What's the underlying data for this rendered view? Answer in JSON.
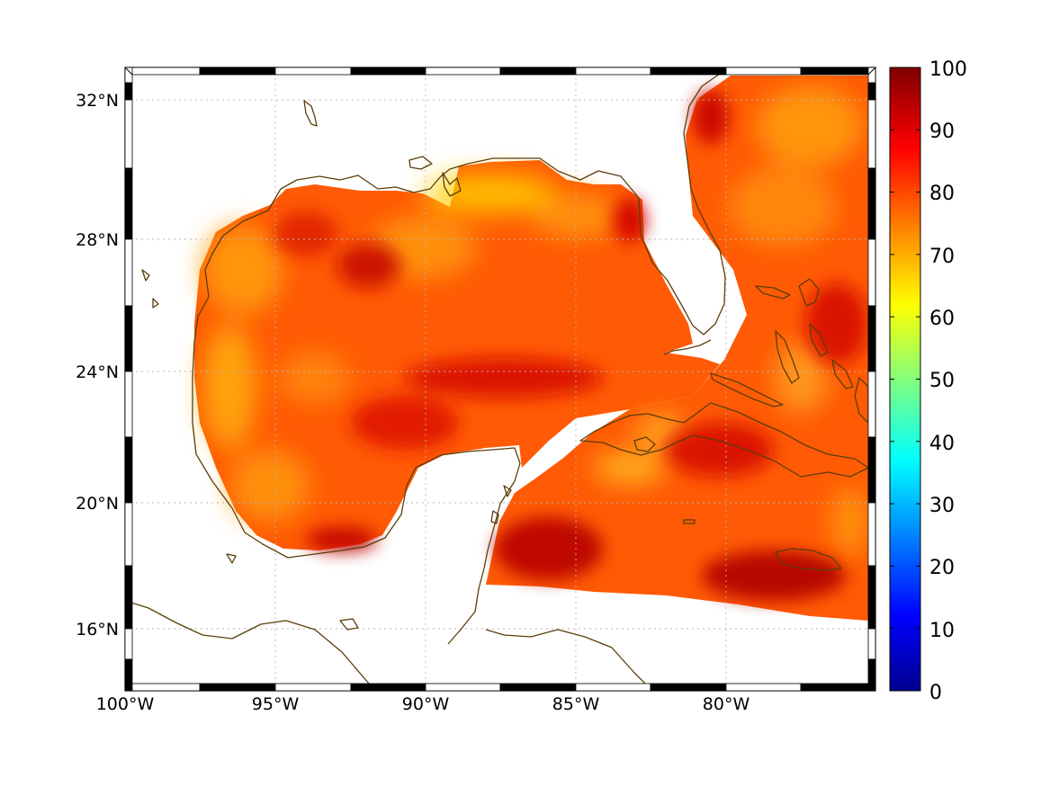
{
  "map": {
    "x_tick_labels": [
      "100°W",
      "95°W",
      "90°W",
      "85°W",
      "80°W"
    ],
    "y_tick_labels": [
      "32°N",
      "28°N",
      "24°N",
      "20°N",
      "16°N"
    ],
    "colors": {
      "coastline": "#5c3d0a",
      "land_fill": "#ffffff",
      "field_base": "#ff5a05",
      "field_dark": "#c80000",
      "field_light": "#ffc000"
    },
    "colormap": "jet"
  },
  "colorbar": {
    "labels": [
      "100",
      "90",
      "80",
      "70",
      "60",
      "50",
      "40",
      "30",
      "20",
      "10",
      "0"
    ],
    "min": 0,
    "max": 100,
    "stops": [
      "#00008f",
      "#0000ff",
      "#00ffff",
      "#ffff00",
      "#ff0000",
      "#800000"
    ]
  }
}
